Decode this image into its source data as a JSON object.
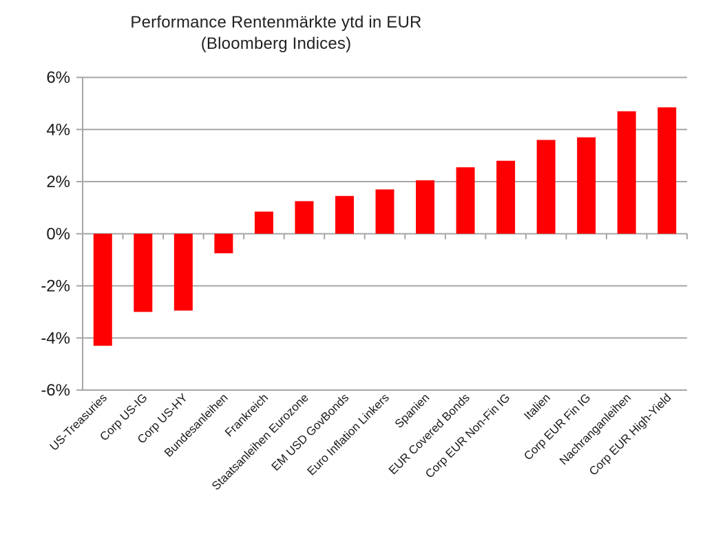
{
  "title": {
    "line1": "Performance Rentenmärkte ytd in EUR",
    "line2": "(Bloomberg Indices)"
  },
  "chart_data": {
    "type": "bar",
    "title": "Performance Rentenmärkte ytd in EUR (Bloomberg Indices)",
    "categories": [
      "US-Treasuries",
      "Corp US-IG",
      "Corp US-HY",
      "Bundesanleihen",
      "Frankreich",
      "Staatsanleihen Eurozone",
      "EM USD GovBonds",
      "Euro Inflation Linkers",
      "Spanien",
      "EUR Covered Bonds",
      "Corp EUR Non-Fin IG",
      "Italien",
      "Corp EUR Fin IG",
      "Nachranganleihen",
      "Corp EUR High-Yield"
    ],
    "values": [
      -4.3,
      -3.0,
      -2.95,
      -0.75,
      0.85,
      1.25,
      1.45,
      1.7,
      2.05,
      2.55,
      2.8,
      3.6,
      3.7,
      4.7,
      4.85
    ],
    "xlabel": "",
    "ylabel": "",
    "ylim": [
      -6,
      6
    ],
    "yticks": [
      6,
      4,
      2,
      0,
      -2,
      -4,
      -6
    ],
    "ytick_labels": [
      "6%",
      "4%",
      "2%",
      "0%",
      "-2%",
      "-4%",
      "-6%"
    ],
    "grid": true,
    "legend": false,
    "bar_color": "#FF0000",
    "grid_color": "#A6A6A6",
    "axis_color": "#A6A6A6",
    "text_color": "#1A1A1A",
    "background": "#FFFFFF"
  }
}
